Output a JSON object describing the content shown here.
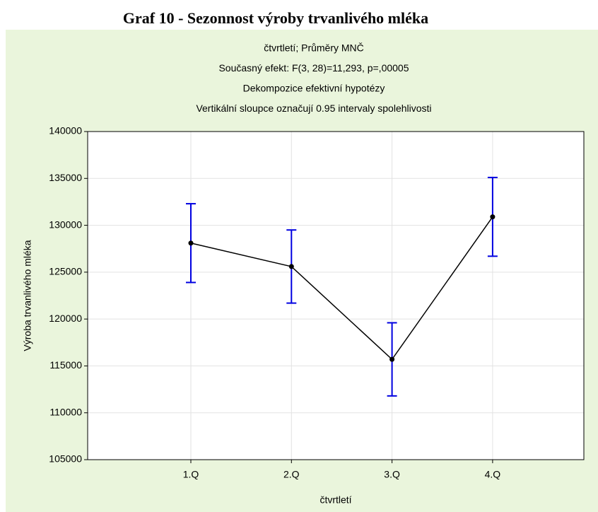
{
  "chart_data": {
    "type": "line",
    "title": "Graf 10 - Sezonnost výroby trvanlivého mléka",
    "subtitle": [
      "čtvrtletí; Průměry MNČ",
      "Současný efekt: F(3, 28)=11,293, p=,00005",
      "Dekompozice efektivní hypotézy",
      "Vertikální sloupce označují 0.95 intervaly spolehlivosti"
    ],
    "xlabel": "čtvrtletí",
    "ylabel": "Výroba trvanlivého mléka",
    "categories": [
      "1.Q",
      "2.Q",
      "3.Q",
      "4.Q"
    ],
    "series": [
      {
        "color": "#000000",
        "error_color": "#0000e0",
        "values": [
          128100,
          125600,
          115700,
          130900
        ],
        "errors": [
          4200,
          3900,
          3900,
          4200
        ]
      }
    ],
    "ylim": [
      105000,
      140000
    ],
    "yticks": [
      105000,
      110000,
      115000,
      120000,
      125000,
      130000,
      135000,
      140000
    ],
    "grid": true,
    "background": "#eaf5dc"
  }
}
